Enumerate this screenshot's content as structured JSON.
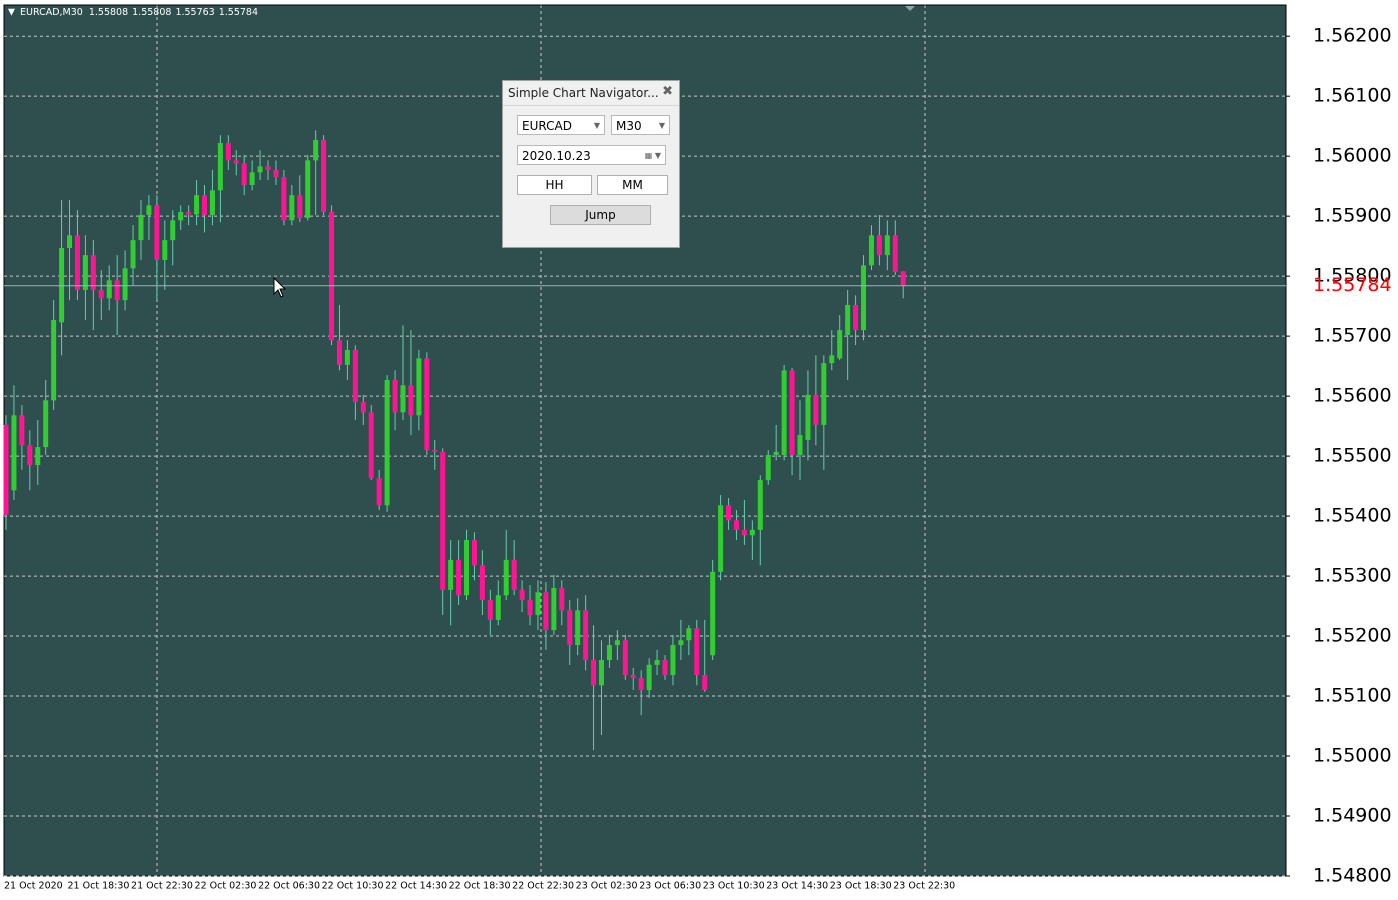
{
  "chart_data": {
    "type": "candlestick",
    "title": "EURCAD,M30",
    "categories": [
      "21 Oct 2020",
      null,
      null,
      null,
      null,
      null,
      null,
      null,
      "21 Oct 18:30",
      null,
      null,
      null,
      null,
      null,
      null,
      null,
      "21 Oct 22:30",
      null,
      null,
      null,
      null,
      null,
      null,
      null,
      "22 Oct 02:30",
      null,
      null,
      null,
      null,
      null,
      null,
      null,
      "22 Oct 06:30",
      null,
      null,
      null,
      null,
      null,
      null,
      null,
      "22 Oct 10:30",
      null,
      null,
      null,
      null,
      null,
      null,
      null,
      "22 Oct 14:30",
      null,
      null,
      null,
      null,
      null,
      null,
      null,
      "22 Oct 18:30",
      null,
      null,
      null,
      null,
      null,
      null,
      null,
      "22 Oct 22:30",
      null,
      null,
      null,
      null,
      null,
      null,
      null,
      "23 Oct 02:30",
      null,
      null,
      null,
      null,
      null,
      null,
      null,
      "23 Oct 06:30",
      null,
      null,
      null,
      null,
      null,
      null,
      null,
      "23 Oct 10:30",
      null,
      null,
      null,
      null,
      null,
      null,
      null,
      "23 Oct 14:30",
      null,
      null,
      null,
      null,
      null,
      null,
      null,
      "23 Oct 18:30",
      null,
      null,
      null,
      null,
      null,
      null,
      null,
      "23 Oct 22:30",
      null
    ],
    "values": [
      [
        1.55552,
        1.55568,
        1.55377,
        1.55402
      ],
      [
        1.55443,
        1.55618,
        1.55427,
        1.55568
      ],
      [
        1.55568,
        1.55585,
        1.55477,
        1.55518
      ],
      [
        1.55518,
        1.55543,
        1.55443,
        1.55485
      ],
      [
        1.55485,
        1.5556,
        1.55452,
        1.55515
      ],
      [
        1.55515,
        1.55627,
        1.55502,
        1.55593
      ],
      [
        1.55593,
        1.5576,
        1.55577,
        1.55727
      ],
      [
        1.55723,
        1.55927,
        1.55668,
        1.55847
      ],
      [
        1.55847,
        1.55927,
        1.5576,
        1.55868
      ],
      [
        1.55868,
        1.5591,
        1.5576,
        1.55777
      ],
      [
        1.55777,
        1.55868,
        1.55727,
        1.55835
      ],
      [
        1.55835,
        1.5586,
        1.5571,
        1.55777
      ],
      [
        1.55777,
        1.5581,
        1.55727,
        1.55763
      ],
      [
        1.55763,
        1.55818,
        1.55743,
        1.55793
      ],
      [
        1.55793,
        1.55835,
        1.55702,
        1.5576
      ],
      [
        1.5576,
        1.55843,
        1.55743,
        1.55813
      ],
      [
        1.55813,
        1.55885,
        1.55785,
        1.5586
      ],
      [
        1.5586,
        1.55927,
        1.55827,
        1.55902
      ],
      [
        1.55902,
        1.55935,
        1.5586,
        1.55918
      ],
      [
        1.55918,
        1.55935,
        1.5576,
        1.55827
      ],
      [
        1.55827,
        1.55893,
        1.55777,
        1.5586
      ],
      [
        1.5586,
        1.5591,
        1.55818,
        1.55893
      ],
      [
        1.55893,
        1.55918,
        1.55877,
        1.55907
      ],
      [
        1.55907,
        1.55918,
        1.55885,
        1.55903
      ],
      [
        1.55903,
        1.5596,
        1.55885,
        1.55935
      ],
      [
        1.55935,
        1.55952,
        1.55873,
        1.55902
      ],
      [
        1.55902,
        1.55977,
        1.55885,
        1.55943
      ],
      [
        1.55943,
        1.56035,
        1.5589,
        1.56022
      ],
      [
        1.56022,
        1.56035,
        1.55977,
        1.55993
      ],
      [
        1.55993,
        1.5601,
        1.55968,
        1.55988
      ],
      [
        1.55988,
        1.56002,
        1.55935,
        1.55952
      ],
      [
        1.55952,
        1.55993,
        1.55943,
        1.55973
      ],
      [
        1.55973,
        1.5601,
        1.5596,
        1.55983
      ],
      [
        1.55983,
        1.55993,
        1.5596,
        1.55977
      ],
      [
        1.55977,
        1.55993,
        1.55952,
        1.55965
      ],
      [
        1.55965,
        1.55977,
        1.55885,
        1.55893
      ],
      [
        1.55893,
        1.55952,
        1.55885,
        1.55935
      ],
      [
        1.55935,
        1.55968,
        1.5589,
        1.55897
      ],
      [
        1.55897,
        1.56002,
        1.55893,
        1.55993
      ],
      [
        1.55993,
        1.56043,
        1.55902,
        1.56027
      ],
      [
        1.56027,
        1.56035,
        1.55902,
        1.55907
      ],
      [
        1.55907,
        1.55918,
        1.55685,
        1.55693
      ],
      [
        1.55693,
        1.55752,
        1.55643,
        1.55652
      ],
      [
        1.55652,
        1.55693,
        1.55627,
        1.55677
      ],
      [
        1.55677,
        1.55685,
        1.5556,
        1.5559
      ],
      [
        1.5559,
        1.55602,
        1.55552,
        1.55573
      ],
      [
        1.55573,
        1.55585,
        1.5546,
        1.55463
      ],
      [
        1.55463,
        1.55477,
        1.5541,
        1.55418
      ],
      [
        1.55418,
        1.55635,
        1.55407,
        1.55627
      ],
      [
        1.55627,
        1.55643,
        1.55543,
        1.55573
      ],
      [
        1.55573,
        1.55718,
        1.5556,
        1.55618
      ],
      [
        1.55618,
        1.5571,
        1.55535,
        1.55568
      ],
      [
        1.55568,
        1.55677,
        1.55543,
        1.55663
      ],
      [
        1.55663,
        1.55673,
        1.55502,
        1.5551
      ],
      [
        1.5551,
        1.55527,
        1.55477,
        1.55507
      ],
      [
        1.55507,
        1.55513,
        1.55235,
        1.55277
      ],
      [
        1.55277,
        1.5536,
        1.55218,
        1.55327
      ],
      [
        1.55327,
        1.5536,
        1.55252,
        1.55268
      ],
      [
        1.55268,
        1.55377,
        1.5526,
        1.5536
      ],
      [
        1.5536,
        1.55373,
        1.55293,
        1.55318
      ],
      [
        1.55318,
        1.55343,
        1.55235,
        1.5526
      ],
      [
        1.5526,
        1.55277,
        1.55202,
        1.55227
      ],
      [
        1.55227,
        1.55293,
        1.55218,
        1.55268
      ],
      [
        1.55268,
        1.55377,
        1.5526,
        1.55327
      ],
      [
        1.55327,
        1.5536,
        1.55268,
        1.55277
      ],
      [
        1.55277,
        1.55293,
        1.5524,
        1.5526
      ],
      [
        1.5526,
        1.55285,
        1.55218,
        1.55235
      ],
      [
        1.55235,
        1.55293,
        1.5521,
        1.55273
      ],
      [
        1.55273,
        1.5529,
        1.55177,
        1.5521
      ],
      [
        1.5521,
        1.55302,
        1.55202,
        1.5528
      ],
      [
        1.5528,
        1.55293,
        1.55218,
        1.55243
      ],
      [
        1.55243,
        1.5526,
        1.55152,
        1.55185
      ],
      [
        1.55185,
        1.55263,
        1.55168,
        1.55243
      ],
      [
        1.55243,
        1.55268,
        1.55143,
        1.5516
      ],
      [
        1.5516,
        1.55218,
        1.5501,
        1.55118
      ],
      [
        1.55118,
        1.55193,
        1.55035,
        1.5516
      ],
      [
        1.5516,
        1.55202,
        1.55147,
        1.55185
      ],
      [
        1.55185,
        1.5521,
        1.5516,
        1.55193
      ],
      [
        1.55193,
        1.55202,
        1.55127,
        1.55135
      ],
      [
        1.55135,
        1.55147,
        1.5511,
        1.5513
      ],
      [
        1.5513,
        1.55143,
        1.55068,
        1.5511
      ],
      [
        1.5511,
        1.55163,
        1.55097,
        1.55152
      ],
      [
        1.55152,
        1.55177,
        1.55135,
        1.5516
      ],
      [
        1.5516,
        1.55168,
        1.55127,
        1.55135
      ],
      [
        1.55135,
        1.55202,
        1.55118,
        1.55185
      ],
      [
        1.55185,
        1.55227,
        1.5516,
        1.55193
      ],
      [
        1.55193,
        1.55218,
        1.55168,
        1.55213
      ],
      [
        1.55213,
        1.55227,
        1.55118,
        1.55135
      ],
      [
        1.55135,
        1.55227,
        1.55107,
        1.5511
      ],
      [
        1.55168,
        1.55327,
        1.5516,
        1.55307
      ],
      [
        1.55307,
        1.55435,
        1.55293,
        1.55418
      ],
      [
        1.55418,
        1.5543,
        1.55377,
        1.55393
      ],
      [
        1.55393,
        1.5541,
        1.5536,
        1.55377
      ],
      [
        1.55377,
        1.55427,
        1.55352,
        1.55368
      ],
      [
        1.55368,
        1.55393,
        1.55327,
        1.55377
      ],
      [
        1.55377,
        1.55468,
        1.55318,
        1.5546
      ],
      [
        1.5546,
        1.5551,
        1.55452,
        1.55502
      ],
      [
        1.55502,
        1.55552,
        1.55493,
        1.55507
      ],
      [
        1.55502,
        1.55652,
        1.55493,
        1.55643
      ],
      [
        1.55643,
        1.55647,
        1.55468,
        1.55502
      ],
      [
        1.55502,
        1.55593,
        1.5546,
        1.55535
      ],
      [
        1.55527,
        1.55643,
        1.55493,
        1.55602
      ],
      [
        1.55602,
        1.55668,
        1.55518,
        1.55552
      ],
      [
        1.55552,
        1.55668,
        1.55477,
        1.55655
      ],
      [
        1.55655,
        1.5571,
        1.55643,
        1.55668
      ],
      [
        1.55663,
        1.55735,
        1.5566,
        1.5571
      ],
      [
        1.55702,
        1.55777,
        1.55627,
        1.55752
      ],
      [
        1.55752,
        1.55768,
        1.55685,
        1.5571
      ],
      [
        1.5571,
        1.55835,
        1.55693,
        1.55818
      ],
      [
        1.55818,
        1.55885,
        1.5581,
        1.55868
      ],
      [
        1.55868,
        1.55902,
        1.55818,
        1.55835
      ],
      [
        1.55835,
        1.55893,
        1.5581,
        1.55868
      ],
      [
        1.55868,
        1.55893,
        1.55802,
        1.55807
      ],
      [
        1.55808,
        1.55808,
        1.55763,
        1.55784
      ]
    ],
    "up_color": "#32cd32",
    "down_color": "#ff1493",
    "wick_color": "#66cdaa",
    "last_price_color": "#ff0000",
    "ylim": [
      1.548,
      1.56252
    ],
    "yticks": [
      {
        "value": 1.548,
        "label": "1.54800"
      },
      {
        "value": 1.549,
        "label": "1.54900"
      },
      {
        "value": 1.55,
        "label": "1.55000"
      },
      {
        "value": 1.551,
        "label": "1.55100"
      },
      {
        "value": 1.552,
        "label": "1.55200"
      },
      {
        "value": 1.553,
        "label": "1.55300"
      },
      {
        "value": 1.554,
        "label": "1.55400"
      },
      {
        "value": 1.555,
        "label": "1.55500"
      },
      {
        "value": 1.556,
        "label": "1.55600"
      },
      {
        "value": 1.557,
        "label": "1.55700"
      },
      {
        "value": 1.558,
        "label": "1.55800"
      },
      {
        "value": 1.559,
        "label": "1.55900"
      },
      {
        "value": 1.56,
        "label": "1.56000"
      },
      {
        "value": 1.561,
        "label": "1.56100"
      },
      {
        "value": 1.562,
        "label": "1.56200"
      }
    ],
    "grid": true
  },
  "dialog": {
    "title": "Simple Chart Navigator...",
    "symbol": "EURCAD",
    "timeframe": "M30",
    "date": "2020.10.23",
    "buttons": [
      "HH",
      "MM",
      "Jump"
    ]
  }
}
